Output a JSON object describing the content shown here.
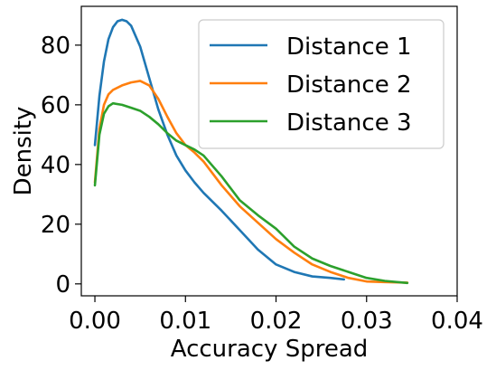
{
  "chart_data": {
    "type": "line",
    "title": "",
    "xlabel": "Accuracy Spread",
    "ylabel": "Density",
    "xlim": [
      -0.0015,
      0.04
    ],
    "ylim": [
      -4,
      93
    ],
    "xticks": [
      0.0,
      0.01,
      0.02,
      0.03,
      0.04
    ],
    "xtick_labels": [
      "0.00",
      "0.01",
      "0.02",
      "0.03",
      "0.04"
    ],
    "yticks": [
      0,
      20,
      40,
      60,
      80
    ],
    "ytick_labels": [
      "0",
      "20",
      "40",
      "60",
      "80"
    ],
    "grid": false,
    "legend_position": "top-right",
    "series": [
      {
        "name": "Distance 1",
        "color": "#1f77b4",
        "points": [
          [
            0.0,
            46.5
          ],
          [
            0.0005,
            63.0
          ],
          [
            0.001,
            74.5
          ],
          [
            0.0015,
            82.0
          ],
          [
            0.002,
            86.0
          ],
          [
            0.0025,
            88.0
          ],
          [
            0.003,
            88.5
          ],
          [
            0.0035,
            88.0
          ],
          [
            0.004,
            86.5
          ],
          [
            0.005,
            79.5
          ],
          [
            0.006,
            69.0
          ],
          [
            0.007,
            58.5
          ],
          [
            0.008,
            50.0
          ],
          [
            0.009,
            43.0
          ],
          [
            0.01,
            38.0
          ],
          [
            0.011,
            34.0
          ],
          [
            0.012,
            30.5
          ],
          [
            0.014,
            24.5
          ],
          [
            0.016,
            18.0
          ],
          [
            0.018,
            11.5
          ],
          [
            0.02,
            6.5
          ],
          [
            0.022,
            4.0
          ],
          [
            0.024,
            2.5
          ],
          [
            0.026,
            2.0
          ],
          [
            0.0275,
            1.5
          ]
        ]
      },
      {
        "name": "Distance 2",
        "color": "#ff7f0e",
        "points": [
          [
            0.0,
            34.0
          ],
          [
            0.0005,
            52.0
          ],
          [
            0.001,
            60.0
          ],
          [
            0.0015,
            63.5
          ],
          [
            0.002,
            65.0
          ],
          [
            0.003,
            66.5
          ],
          [
            0.004,
            67.5
          ],
          [
            0.005,
            68.0
          ],
          [
            0.006,
            66.5
          ],
          [
            0.007,
            62.0
          ],
          [
            0.008,
            56.0
          ],
          [
            0.009,
            50.5
          ],
          [
            0.01,
            46.5
          ],
          [
            0.011,
            44.0
          ],
          [
            0.012,
            41.0
          ],
          [
            0.014,
            33.0
          ],
          [
            0.016,
            26.0
          ],
          [
            0.018,
            20.5
          ],
          [
            0.02,
            15.0
          ],
          [
            0.022,
            10.5
          ],
          [
            0.024,
            6.5
          ],
          [
            0.026,
            4.0
          ],
          [
            0.028,
            2.0
          ],
          [
            0.03,
            0.8
          ],
          [
            0.032,
            0.6
          ],
          [
            0.0345,
            0.4
          ]
        ]
      },
      {
        "name": "Distance 3",
        "color": "#2ca02c",
        "points": [
          [
            0.0,
            33.0
          ],
          [
            0.0005,
            50.0
          ],
          [
            0.001,
            57.0
          ],
          [
            0.0015,
            59.5
          ],
          [
            0.002,
            60.5
          ],
          [
            0.003,
            60.0
          ],
          [
            0.004,
            59.0
          ],
          [
            0.005,
            58.0
          ],
          [
            0.006,
            56.0
          ],
          [
            0.007,
            53.5
          ],
          [
            0.008,
            50.5
          ],
          [
            0.009,
            48.0
          ],
          [
            0.01,
            46.5
          ],
          [
            0.011,
            45.0
          ],
          [
            0.012,
            43.0
          ],
          [
            0.014,
            36.0
          ],
          [
            0.016,
            28.0
          ],
          [
            0.018,
            23.0
          ],
          [
            0.02,
            18.5
          ],
          [
            0.022,
            12.5
          ],
          [
            0.024,
            8.5
          ],
          [
            0.026,
            6.0
          ],
          [
            0.028,
            4.0
          ],
          [
            0.03,
            2.0
          ],
          [
            0.032,
            1.0
          ],
          [
            0.0345,
            0.3
          ]
        ]
      }
    ]
  }
}
